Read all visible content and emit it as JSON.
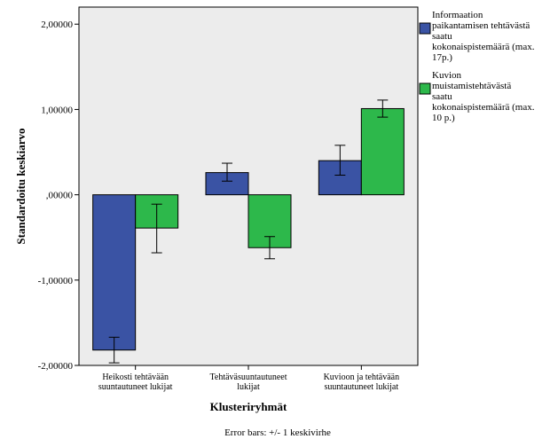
{
  "chart_data": {
    "type": "bar",
    "ylabel": "Standardoitu keskiarvo",
    "xlabel": "Klusteriryhmät",
    "footnote": "Error bars: +/- 1 keskivirhe",
    "ylim": [
      -2,
      2.2
    ],
    "yticks": [
      -2,
      -1,
      0,
      1,
      2
    ],
    "ytick_labels": [
      "-2,00000",
      "-1,00000",
      ",00000",
      "1,00000",
      "2,00000"
    ],
    "categories": [
      [
        "Heikosti tehtävään",
        "suuntautuneet lukijat"
      ],
      [
        "Tehtäväsuuntautuneet",
        "lukijat"
      ],
      [
        "Kuvioon ja tehtävään",
        "suuntautuneet lukijat"
      ]
    ],
    "series": [
      {
        "name": [
          "Informaation",
          "paikantamisen tehtävästä",
          "saatu",
          "kokonaispistemäärä (max.",
          "17p.)"
        ],
        "color": "#3a53a4",
        "values": [
          -1.82,
          0.26,
          0.4
        ],
        "err_low": [
          -1.97,
          0.16,
          0.23
        ],
        "err_high": [
          -1.67,
          0.37,
          0.58
        ]
      },
      {
        "name": [
          "Kuvion",
          "muistamistehtävästä",
          "saatu",
          "kokonaispistemäärä (max.",
          "10 p.)"
        ],
        "color": "#2db84b",
        "values": [
          -0.39,
          -0.62,
          1.01
        ],
        "err_low": [
          -0.68,
          -0.75,
          0.91
        ],
        "err_high": [
          -0.11,
          -0.49,
          1.11
        ]
      }
    ],
    "plot_background": "#ececec",
    "grid": false,
    "legend_position": "right"
  }
}
